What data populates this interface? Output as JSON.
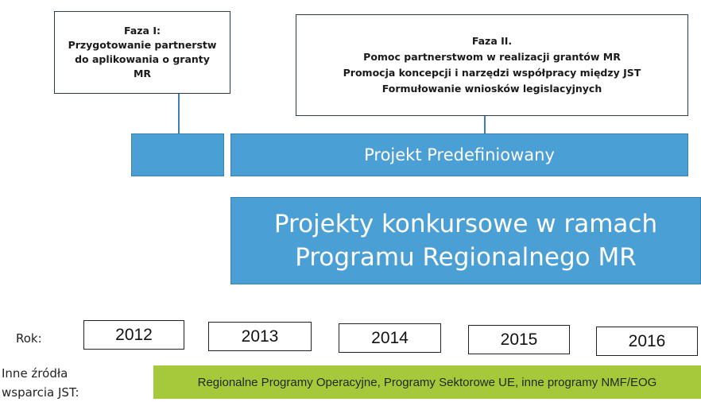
{
  "phase1": {
    "lines": [
      "Faza I:",
      "Przygotowanie partnerstw",
      "do aplikowania o granty",
      "MR"
    ]
  },
  "phase2": {
    "lines": [
      "Faza II.",
      "Pomoc partnerstwom w realizacji grantów MR",
      "Promocja koncepcji i narzędzi współpracy między JST",
      "Formułowanie wniosków legislacyjnych"
    ]
  },
  "predefined": "Projekt Predefiniowany",
  "competitive": {
    "lines": [
      "Projekty konkursowe w ramach",
      "Programu Regionalnego MR"
    ]
  },
  "year_label": "Rok:",
  "years": [
    "2012",
    "2013",
    "2014",
    "2015",
    "2016"
  ],
  "other_label": {
    "lines": [
      "Inne źródła",
      "wsparcia JST:"
    ]
  },
  "other_sources": "Regionalne Programy Operacyjne, Programy Sektorowe UE, inne programy NMF/EOG"
}
